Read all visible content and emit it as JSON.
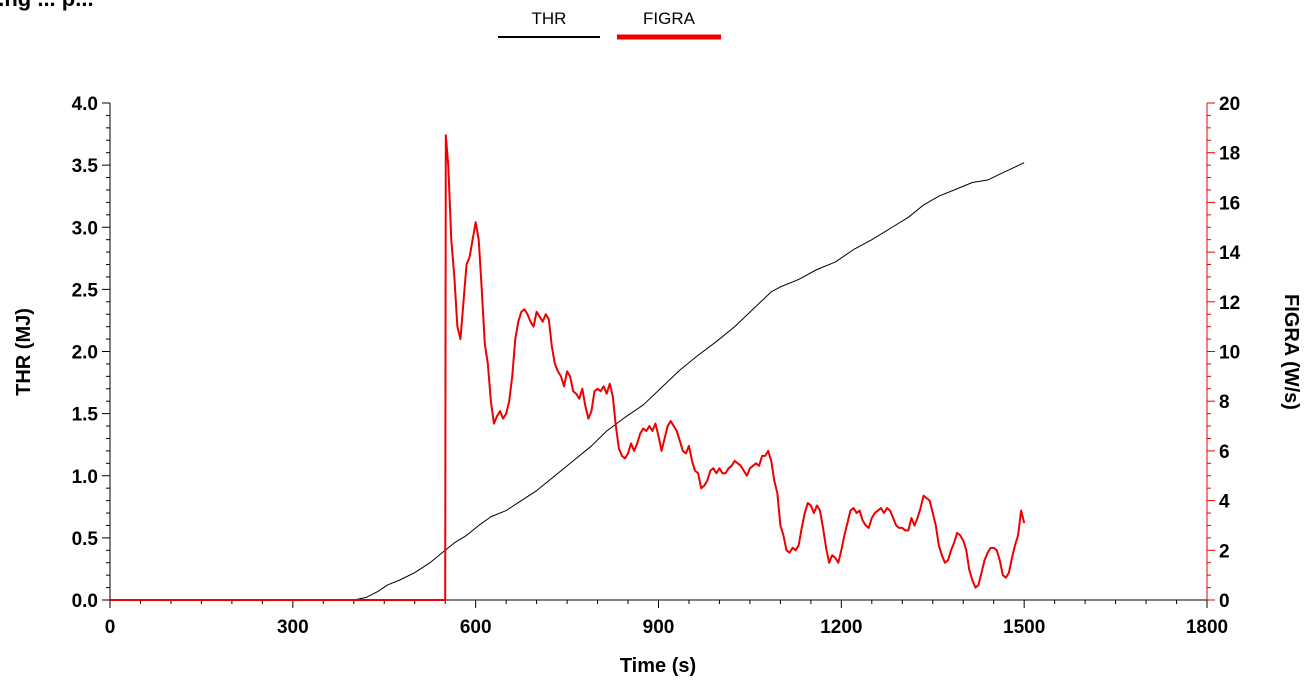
{
  "page": {
    "title": "...ng ... p..."
  },
  "legend": [
    {
      "name": "THR",
      "color": "#000000"
    },
    {
      "name": "FIGRA",
      "color": "#ee0000"
    }
  ],
  "chart_data": {
    "type": "line",
    "title": "",
    "xlabel": "Time (s)",
    "ylabel_left": "THR (MJ)",
    "ylabel_right": "FIGRA (W/s)",
    "xlim": [
      0,
      1800
    ],
    "ylim_left": [
      0,
      4
    ],
    "ylim_right": [
      0,
      20
    ],
    "x_ticks": [
      "0",
      "300",
      "600",
      "900",
      "1200",
      "1500",
      "1800"
    ],
    "y_left_ticks": [
      "0.0",
      "0.5",
      "1.0",
      "1.5",
      "2.0",
      "2.5",
      "3.0",
      "3.5",
      "4.0"
    ],
    "y_right_ticks": [
      "0",
      "2",
      "4",
      "6",
      "8",
      "10",
      "12",
      "14",
      "16",
      "18",
      "20"
    ],
    "grid": false,
    "legend_position": "top-center",
    "series": [
      {
        "name": "THR",
        "axis": "left",
        "color": "#000000",
        "points": [
          [
            0,
            0
          ],
          [
            300,
            0
          ],
          [
            400,
            0.0
          ],
          [
            420,
            0.02
          ],
          [
            440,
            0.07
          ],
          [
            455,
            0.12
          ],
          [
            475,
            0.16
          ],
          [
            500,
            0.22
          ],
          [
            525,
            0.3
          ],
          [
            545,
            0.38
          ],
          [
            565,
            0.46
          ],
          [
            585,
            0.52
          ],
          [
            605,
            0.6
          ],
          [
            625,
            0.67
          ],
          [
            650,
            0.72
          ],
          [
            675,
            0.8
          ],
          [
            700,
            0.88
          ],
          [
            730,
            1.0
          ],
          [
            760,
            1.12
          ],
          [
            790,
            1.24
          ],
          [
            815,
            1.36
          ],
          [
            845,
            1.47
          ],
          [
            875,
            1.57
          ],
          [
            905,
            1.71
          ],
          [
            935,
            1.85
          ],
          [
            965,
            1.97
          ],
          [
            995,
            2.08
          ],
          [
            1025,
            2.2
          ],
          [
            1055,
            2.34
          ],
          [
            1085,
            2.48
          ],
          [
            1100,
            2.52
          ],
          [
            1130,
            2.58
          ],
          [
            1160,
            2.66
          ],
          [
            1190,
            2.72
          ],
          [
            1220,
            2.82
          ],
          [
            1250,
            2.9
          ],
          [
            1280,
            2.99
          ],
          [
            1310,
            3.08
          ],
          [
            1335,
            3.18
          ],
          [
            1360,
            3.25
          ],
          [
            1385,
            3.3
          ],
          [
            1415,
            3.36
          ],
          [
            1440,
            3.38
          ],
          [
            1470,
            3.45
          ],
          [
            1500,
            3.52
          ]
        ]
      },
      {
        "name": "FIGRA",
        "axis": "right",
        "color": "#ee0000",
        "points": [
          [
            0,
            0
          ],
          [
            550,
            0
          ],
          [
            551,
            18.7
          ],
          [
            555,
            17.5
          ],
          [
            560,
            14.5
          ],
          [
            565,
            13.0
          ],
          [
            570,
            11.0
          ],
          [
            575,
            10.5
          ],
          [
            580,
            12.0
          ],
          [
            585,
            13.5
          ],
          [
            590,
            13.8
          ],
          [
            595,
            14.5
          ],
          [
            600,
            15.2
          ],
          [
            605,
            14.5
          ],
          [
            610,
            12.5
          ],
          [
            615,
            10.3
          ],
          [
            620,
            9.5
          ],
          [
            625,
            8.0
          ],
          [
            630,
            7.1
          ],
          [
            635,
            7.4
          ],
          [
            640,
            7.6
          ],
          [
            645,
            7.3
          ],
          [
            650,
            7.5
          ],
          [
            655,
            8.0
          ],
          [
            660,
            9.0
          ],
          [
            665,
            10.5
          ],
          [
            670,
            11.2
          ],
          [
            675,
            11.6
          ],
          [
            680,
            11.7
          ],
          [
            685,
            11.5
          ],
          [
            690,
            11.2
          ],
          [
            695,
            11.0
          ],
          [
            700,
            11.6
          ],
          [
            705,
            11.4
          ],
          [
            710,
            11.2
          ],
          [
            715,
            11.5
          ],
          [
            720,
            11.3
          ],
          [
            725,
            10.2
          ],
          [
            730,
            9.5
          ],
          [
            735,
            9.2
          ],
          [
            740,
            9.0
          ],
          [
            745,
            8.6
          ],
          [
            750,
            9.2
          ],
          [
            755,
            9.0
          ],
          [
            760,
            8.4
          ],
          [
            765,
            8.3
          ],
          [
            770,
            8.1
          ],
          [
            775,
            8.5
          ],
          [
            780,
            7.8
          ],
          [
            785,
            7.3
          ],
          [
            790,
            7.6
          ],
          [
            795,
            8.4
          ],
          [
            800,
            8.5
          ],
          [
            805,
            8.4
          ],
          [
            810,
            8.6
          ],
          [
            815,
            8.3
          ],
          [
            820,
            8.7
          ],
          [
            825,
            8.2
          ],
          [
            830,
            7.0
          ],
          [
            835,
            6.1
          ],
          [
            840,
            5.8
          ],
          [
            845,
            5.7
          ],
          [
            850,
            5.9
          ],
          [
            855,
            6.3
          ],
          [
            860,
            6.0
          ],
          [
            865,
            6.3
          ],
          [
            870,
            6.7
          ],
          [
            875,
            6.9
          ],
          [
            880,
            6.8
          ],
          [
            885,
            7.0
          ],
          [
            890,
            6.8
          ],
          [
            895,
            7.1
          ],
          [
            900,
            6.6
          ],
          [
            905,
            6.0
          ],
          [
            910,
            6.5
          ],
          [
            915,
            7.0
          ],
          [
            920,
            7.2
          ],
          [
            925,
            7.0
          ],
          [
            930,
            6.8
          ],
          [
            935,
            6.4
          ],
          [
            940,
            6.0
          ],
          [
            945,
            5.9
          ],
          [
            950,
            6.2
          ],
          [
            955,
            5.6
          ],
          [
            960,
            5.2
          ],
          [
            965,
            5.1
          ],
          [
            970,
            4.5
          ],
          [
            975,
            4.6
          ],
          [
            980,
            4.8
          ],
          [
            985,
            5.2
          ],
          [
            990,
            5.3
          ],
          [
            995,
            5.1
          ],
          [
            1000,
            5.3
          ],
          [
            1005,
            5.1
          ],
          [
            1010,
            5.1
          ],
          [
            1015,
            5.3
          ],
          [
            1020,
            5.4
          ],
          [
            1025,
            5.6
          ],
          [
            1030,
            5.5
          ],
          [
            1035,
            5.4
          ],
          [
            1040,
            5.2
          ],
          [
            1045,
            5.0
          ],
          [
            1050,
            5.3
          ],
          [
            1055,
            5.4
          ],
          [
            1060,
            5.5
          ],
          [
            1065,
            5.4
          ],
          [
            1070,
            5.8
          ],
          [
            1075,
            5.8
          ],
          [
            1080,
            6.0
          ],
          [
            1085,
            5.6
          ],
          [
            1090,
            4.8
          ],
          [
            1095,
            4.3
          ],
          [
            1100,
            3.0
          ],
          [
            1105,
            2.6
          ],
          [
            1110,
            2.0
          ],
          [
            1115,
            1.9
          ],
          [
            1120,
            2.1
          ],
          [
            1125,
            2.0
          ],
          [
            1130,
            2.2
          ],
          [
            1135,
            2.9
          ],
          [
            1140,
            3.5
          ],
          [
            1145,
            3.9
          ],
          [
            1150,
            3.8
          ],
          [
            1155,
            3.5
          ],
          [
            1160,
            3.8
          ],
          [
            1165,
            3.6
          ],
          [
            1170,
            2.9
          ],
          [
            1175,
            2.1
          ],
          [
            1180,
            1.5
          ],
          [
            1185,
            1.8
          ],
          [
            1190,
            1.7
          ],
          [
            1195,
            1.5
          ],
          [
            1200,
            2.0
          ],
          [
            1205,
            2.6
          ],
          [
            1210,
            3.1
          ],
          [
            1215,
            3.6
          ],
          [
            1220,
            3.7
          ],
          [
            1225,
            3.5
          ],
          [
            1230,
            3.6
          ],
          [
            1235,
            3.2
          ],
          [
            1240,
            3.0
          ],
          [
            1245,
            2.9
          ],
          [
            1250,
            3.3
          ],
          [
            1255,
            3.5
          ],
          [
            1260,
            3.6
          ],
          [
            1265,
            3.7
          ],
          [
            1270,
            3.5
          ],
          [
            1275,
            3.7
          ],
          [
            1280,
            3.6
          ],
          [
            1285,
            3.3
          ],
          [
            1290,
            3.0
          ],
          [
            1295,
            2.9
          ],
          [
            1300,
            2.9
          ],
          [
            1305,
            2.8
          ],
          [
            1310,
            2.8
          ],
          [
            1315,
            3.3
          ],
          [
            1320,
            3.0
          ],
          [
            1325,
            3.3
          ],
          [
            1330,
            3.7
          ],
          [
            1335,
            4.2
          ],
          [
            1340,
            4.1
          ],
          [
            1345,
            4.0
          ],
          [
            1350,
            3.5
          ],
          [
            1355,
            3.0
          ],
          [
            1360,
            2.2
          ],
          [
            1365,
            1.8
          ],
          [
            1370,
            1.5
          ],
          [
            1375,
            1.6
          ],
          [
            1380,
            2.0
          ],
          [
            1385,
            2.3
          ],
          [
            1390,
            2.7
          ],
          [
            1395,
            2.6
          ],
          [
            1400,
            2.4
          ],
          [
            1405,
            2.0
          ],
          [
            1410,
            1.2
          ],
          [
            1415,
            0.8
          ],
          [
            1420,
            0.5
          ],
          [
            1425,
            0.6
          ],
          [
            1430,
            1.1
          ],
          [
            1435,
            1.6
          ],
          [
            1440,
            1.9
          ],
          [
            1445,
            2.1
          ],
          [
            1450,
            2.1
          ],
          [
            1455,
            2.0
          ],
          [
            1460,
            1.6
          ],
          [
            1465,
            1.0
          ],
          [
            1470,
            0.9
          ],
          [
            1475,
            1.1
          ],
          [
            1480,
            1.7
          ],
          [
            1485,
            2.2
          ],
          [
            1490,
            2.6
          ],
          [
            1495,
            3.6
          ],
          [
            1500,
            3.1
          ]
        ]
      }
    ]
  }
}
